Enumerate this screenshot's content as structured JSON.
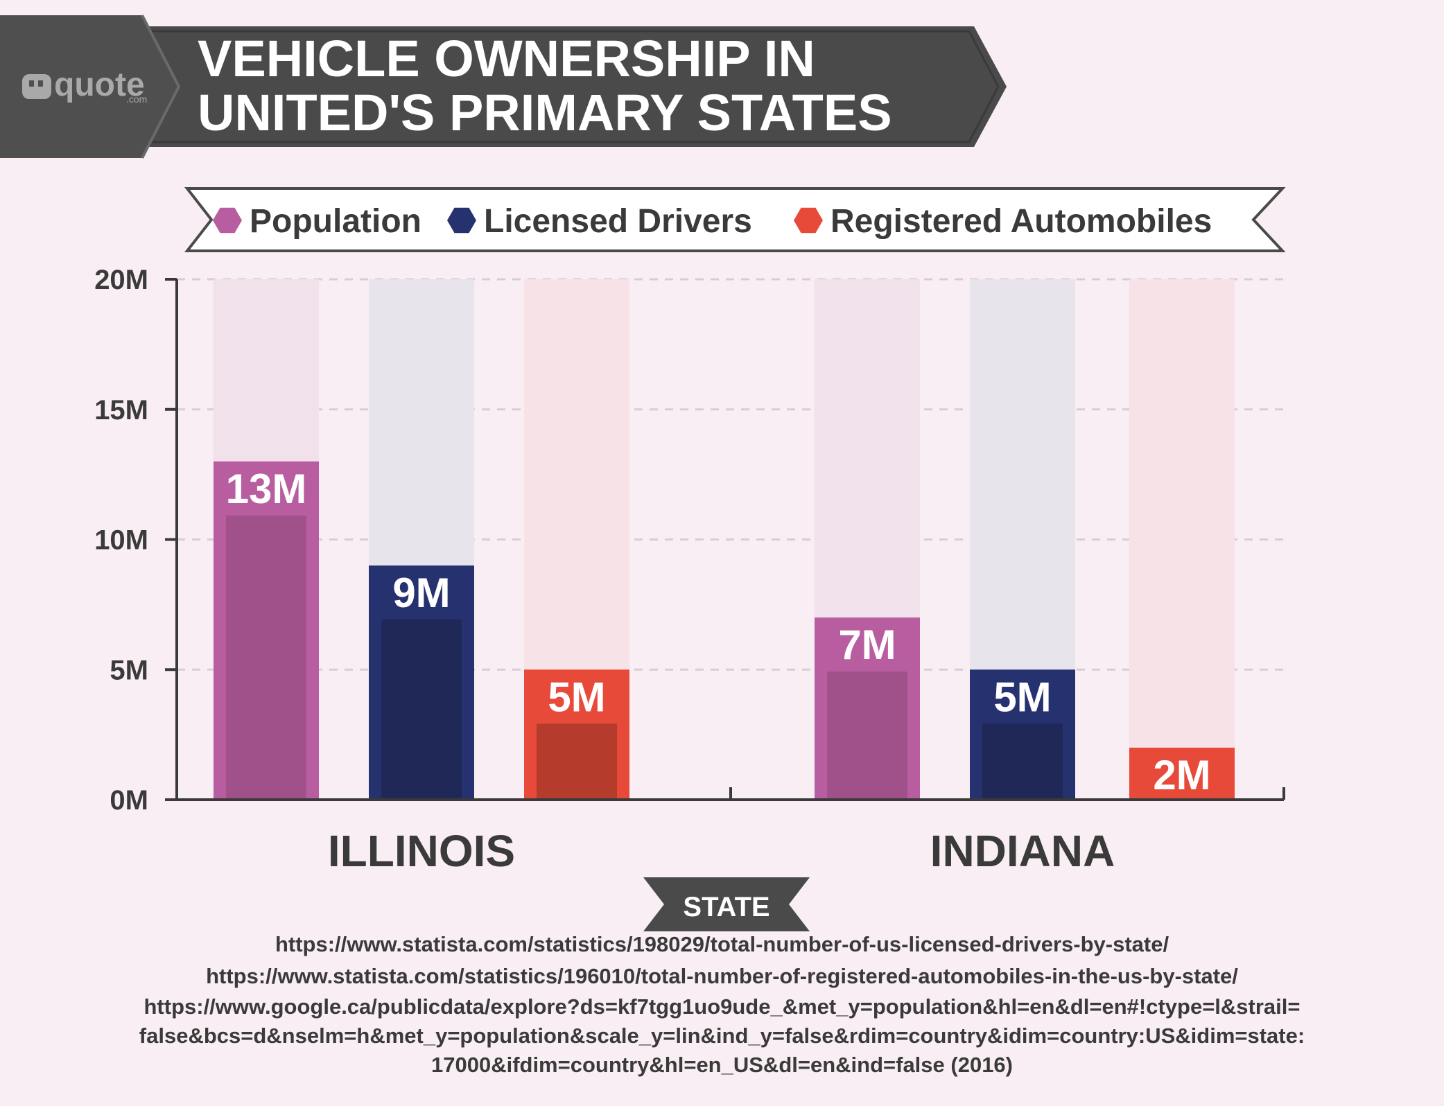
{
  "brand": {
    "logo_text": "quote",
    "logo_sub": ".com"
  },
  "title_lines": [
    "VEHICLE OWNERSHIP IN",
    "UNITED'S PRIMARY STATES"
  ],
  "colors": {
    "background": "#f8eef3",
    "banner": "#4a4a4a",
    "population": "#b85ea0",
    "population_dark": "#a0518a",
    "drivers": "#263270",
    "drivers_dark": "#1f2857",
    "automobiles": "#e84a3a",
    "automobiles_dark": "#b53b2c"
  },
  "chart_data": {
    "type": "bar",
    "title": "VEHICLE OWNERSHIP IN UNITED'S PRIMARY STATES",
    "xlabel": "STATE",
    "ylabel": "",
    "categories": [
      "ILLINOIS",
      "INDIANA"
    ],
    "series": [
      {
        "name": "Population",
        "values": [
          13,
          7
        ],
        "labels": [
          "13M",
          "7M"
        ],
        "color": "#b85ea0"
      },
      {
        "name": "Licensed Drivers",
        "values": [
          9,
          5
        ],
        "labels": [
          "9M",
          "5M"
        ],
        "color": "#263270"
      },
      {
        "name": "Registered Automobiles",
        "values": [
          5,
          2
        ],
        "labels": [
          "5M",
          "2M"
        ],
        "color": "#e84a3a"
      }
    ],
    "ylim": [
      0,
      20
    ],
    "yticks": [
      0,
      5,
      10,
      15,
      20
    ],
    "ytick_labels": [
      "0M",
      "5M",
      "10M",
      "15M",
      "20M"
    ],
    "grid": true,
    "legend_position": "top"
  },
  "sources": [
    "https://www.statista.com/statistics/198029/total-number-of-us-licensed-drivers-by-state/",
    "https://www.statista.com/statistics/196010/total-number-of-registered-automobiles-in-the-us-by-state/",
    "https://www.google.ca/publicdata/explore?ds=kf7tgg1uo9ude_&met_y=population&hl=en&dl=en#!ctype=l&strail=",
    "false&bcs=d&nselm=h&met_y=population&scale_y=lin&ind_y=false&rdim=country&idim=country:US&idim=state:",
    "17000&ifdim=country&hl=en_US&dl=en&ind=false (2016)"
  ]
}
